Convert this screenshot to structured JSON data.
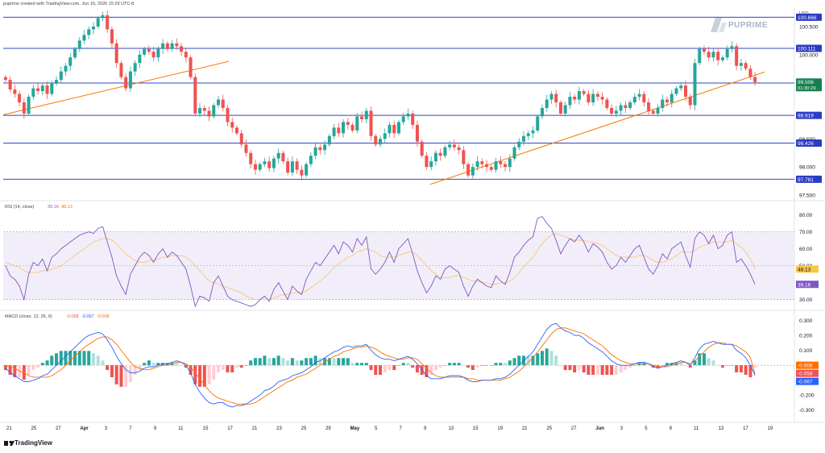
{
  "header": {
    "caption": "puprime created with TradingView.com, Jun 15, 2026 15:29 UTC-8"
  },
  "brand": {
    "logo_text": "PUPRIME",
    "footer": "TradingView"
  },
  "colors": {
    "up": "#26a69a",
    "down": "#ef5350",
    "level_line": "#2f45c9",
    "trend": "#f57c00",
    "rsi": "#7e57c2",
    "rsi_ma": "#f6c67a",
    "macd": "#2962ff",
    "signal": "#ff6d00",
    "price_tag": "#1a7f4f",
    "level_tag": "#2a3cc2"
  },
  "chart_data": [
    {
      "type": "candlestick",
      "title": "",
      "currency_label": "USD",
      "y_ticks": [
        "100.500",
        "100.000",
        "99.500",
        "98.500",
        "98.000",
        "97.500"
      ],
      "ylim": [
        97.5,
        100.8
      ],
      "levels": [
        {
          "value": 100.666,
          "label": "100.666"
        },
        {
          "value": 100.111,
          "label": "100.111"
        },
        {
          "value": 99.495,
          "label": "99.495"
        },
        {
          "value": 98.919,
          "label": "98.919"
        },
        {
          "value": 98.426,
          "label": "98.426"
        },
        {
          "value": 97.781,
          "label": "97.781"
        }
      ],
      "current_price": {
        "value": 99.506,
        "label": "99.506",
        "countdown": "01:30:29"
      },
      "trendlines": [
        {
          "x0": 0.0,
          "y0": 98.93,
          "x1": 0.28,
          "y1": 99.88
        },
        {
          "x0": 0.53,
          "y0": 97.69,
          "x1": 0.945,
          "y1": 99.69
        }
      ],
      "x_ticks": [
        "21",
        "25",
        "27",
        "Apr",
        "3",
        "7",
        "9",
        "11",
        "15",
        "17",
        "21",
        "23",
        "25",
        "29",
        "May",
        "5",
        "7",
        "9",
        "13",
        "15",
        "19",
        "21",
        "25",
        "27",
        "Jun",
        "3",
        "5",
        "9",
        "11",
        "13",
        "17",
        "19"
      ],
      "closes": [
        99.55,
        99.38,
        99.3,
        99.15,
        98.95,
        99.25,
        99.4,
        99.35,
        99.45,
        99.3,
        99.5,
        99.55,
        99.7,
        99.8,
        99.95,
        100.1,
        100.25,
        100.35,
        100.45,
        100.5,
        100.65,
        100.7,
        100.45,
        100.2,
        99.85,
        99.6,
        99.4,
        99.7,
        99.85,
        100.0,
        100.1,
        100.05,
        99.95,
        100.1,
        100.2,
        100.1,
        100.2,
        100.15,
        100.05,
        99.95,
        99.6,
        98.95,
        99.05,
        99.0,
        98.9,
        99.1,
        99.2,
        99.05,
        98.8,
        98.7,
        98.6,
        98.4,
        98.25,
        98.05,
        97.95,
        98.05,
        98.1,
        97.98,
        98.15,
        98.25,
        98.1,
        97.9,
        98.1,
        97.95,
        97.85,
        98.05,
        98.2,
        98.35,
        98.3,
        98.4,
        98.55,
        98.7,
        98.6,
        98.8,
        98.75,
        98.65,
        98.9,
        98.85,
        99.0,
        98.55,
        98.4,
        98.5,
        98.6,
        98.75,
        98.6,
        98.8,
        98.9,
        98.95,
        98.75,
        98.45,
        98.2,
        98.0,
        98.1,
        98.25,
        98.2,
        98.35,
        98.4,
        98.35,
        98.3,
        98.05,
        97.85,
        98.0,
        98.1,
        98.05,
        98.0,
        97.95,
        98.1,
        98.05,
        98.0,
        98.15,
        98.35,
        98.45,
        98.55,
        98.6,
        98.65,
        98.9,
        99.05,
        99.2,
        99.3,
        99.15,
        98.95,
        99.1,
        99.25,
        99.2,
        99.35,
        99.3,
        99.15,
        99.3,
        99.25,
        99.2,
        99.05,
        98.95,
        99.0,
        99.1,
        99.05,
        99.15,
        99.25,
        99.3,
        99.15,
        99.0,
        98.95,
        99.05,
        99.2,
        99.15,
        99.3,
        99.4,
        99.45,
        99.25,
        99.1,
        99.85,
        100.1,
        100.05,
        99.95,
        100.05,
        99.9,
        99.95,
        100.1,
        100.15,
        99.8,
        99.85,
        99.75,
        99.6,
        99.51
      ]
    },
    {
      "type": "line",
      "title": "RSI (14, close)",
      "legend_values": [
        "39.16",
        "48.13"
      ],
      "y_ticks": [
        "80.00",
        "70.00",
        "60.00",
        "50.00",
        "40.00",
        "30.00"
      ],
      "ylim": [
        27,
        85
      ],
      "band": [
        30,
        70
      ],
      "series": [
        {
          "name": "RSI",
          "label": "39.16",
          "values": [
            50,
            44,
            42,
            38,
            30,
            45,
            52,
            50,
            54,
            47,
            55,
            57,
            60,
            62,
            64,
            66,
            68,
            69,
            70,
            69,
            72,
            73,
            64,
            55,
            44,
            38,
            33,
            45,
            50,
            55,
            58,
            56,
            52,
            57,
            60,
            55,
            58,
            56,
            52,
            48,
            38,
            26,
            32,
            31,
            29,
            40,
            44,
            38,
            32,
            30,
            29,
            28,
            27,
            26,
            27,
            30,
            32,
            29,
            36,
            40,
            35,
            30,
            38,
            35,
            33,
            42,
            47,
            52,
            50,
            54,
            58,
            62,
            57,
            64,
            62,
            58,
            66,
            62,
            67,
            48,
            45,
            48,
            52,
            58,
            52,
            60,
            63,
            66,
            57,
            47,
            40,
            34,
            38,
            44,
            42,
            48,
            50,
            48,
            46,
            38,
            32,
            38,
            42,
            40,
            38,
            37,
            44,
            41,
            39,
            46,
            55,
            58,
            62,
            65,
            67,
            78,
            79,
            75,
            72,
            65,
            57,
            62,
            66,
            64,
            68,
            64,
            58,
            63,
            61,
            58,
            52,
            48,
            50,
            55,
            52,
            56,
            60,
            62,
            55,
            48,
            45,
            50,
            57,
            54,
            60,
            62,
            64,
            56,
            49,
            66,
            70,
            68,
            63,
            68,
            60,
            62,
            68,
            70,
            52,
            54,
            50,
            45,
            39
          ]
        },
        {
          "name": "RSI MA",
          "label": "48.13",
          "values": [
            52,
            51,
            50,
            49,
            47,
            46,
            46,
            46,
            47,
            47,
            48,
            49,
            50,
            52,
            54,
            56,
            58,
            60,
            62,
            64,
            65,
            66,
            66,
            65,
            63,
            60,
            57,
            55,
            53,
            52,
            52,
            53,
            53,
            54,
            55,
            55,
            56,
            56,
            56,
            55,
            53,
            50,
            47,
            44,
            41,
            40,
            39,
            38,
            37,
            36,
            35,
            34,
            32,
            31,
            30,
            30,
            30,
            30,
            31,
            32,
            33,
            33,
            34,
            34,
            34,
            35,
            37,
            39,
            41,
            43,
            46,
            49,
            51,
            53,
            55,
            56,
            58,
            59,
            60,
            59,
            58,
            56,
            55,
            55,
            55,
            56,
            57,
            58,
            58,
            56,
            53,
            50,
            47,
            45,
            43,
            43,
            43,
            44,
            44,
            43,
            42,
            41,
            41,
            40,
            40,
            39,
            39,
            40,
            40,
            41,
            43,
            46,
            49,
            52,
            55,
            59,
            63,
            66,
            68,
            69,
            68,
            67,
            66,
            65,
            65,
            65,
            64,
            64,
            63,
            62,
            60,
            58,
            56,
            55,
            55,
            55,
            55,
            56,
            56,
            55,
            53,
            52,
            52,
            53,
            54,
            56,
            58,
            58,
            58,
            59,
            61,
            62,
            63,
            64,
            64,
            64,
            64,
            65,
            63,
            61,
            58,
            54,
            48
          ]
        }
      ]
    },
    {
      "type": "bar+line",
      "title": "MACD (close, 12, 26, 9)",
      "legend_values": [
        "-0.058",
        "-0.067",
        "-0.008"
      ],
      "y_ticks": [
        "0.300",
        "0.200",
        "0.100",
        "0.000",
        "-0.100",
        "-0.200",
        "-0.300"
      ],
      "ylim": [
        -0.35,
        0.33
      ],
      "series": [
        {
          "name": "MACD",
          "label": "-0.067",
          "values": [
            -0.02,
            -0.05,
            -0.07,
            -0.09,
            -0.11,
            -0.11,
            -0.1,
            -0.09,
            -0.07,
            -0.06,
            -0.03,
            0.0,
            0.03,
            0.06,
            0.09,
            0.12,
            0.15,
            0.18,
            0.2,
            0.21,
            0.22,
            0.21,
            0.17,
            0.12,
            0.06,
            0.01,
            -0.03,
            -0.05,
            -0.05,
            -0.04,
            -0.02,
            -0.01,
            -0.01,
            0.0,
            0.01,
            0.01,
            0.02,
            0.03,
            0.02,
            0.0,
            -0.05,
            -0.13,
            -0.18,
            -0.22,
            -0.25,
            -0.26,
            -0.25,
            -0.25,
            -0.27,
            -0.28,
            -0.27,
            -0.27,
            -0.26,
            -0.24,
            -0.22,
            -0.2,
            -0.17,
            -0.16,
            -0.14,
            -0.11,
            -0.1,
            -0.09,
            -0.07,
            -0.06,
            -0.05,
            -0.03,
            -0.01,
            0.02,
            0.03,
            0.05,
            0.07,
            0.09,
            0.1,
            0.12,
            0.13,
            0.12,
            0.13,
            0.13,
            0.14,
            0.1,
            0.07,
            0.05,
            0.04,
            0.04,
            0.03,
            0.04,
            0.05,
            0.06,
            0.04,
            0.01,
            -0.03,
            -0.07,
            -0.09,
            -0.09,
            -0.09,
            -0.08,
            -0.07,
            -0.07,
            -0.07,
            -0.08,
            -0.1,
            -0.11,
            -0.11,
            -0.1,
            -0.1,
            -0.1,
            -0.09,
            -0.09,
            -0.08,
            -0.06,
            -0.03,
            0.0,
            0.03,
            0.06,
            0.09,
            0.14,
            0.19,
            0.24,
            0.27,
            0.28,
            0.25,
            0.23,
            0.22,
            0.2,
            0.2,
            0.18,
            0.15,
            0.13,
            0.11,
            0.09,
            0.06,
            0.03,
            0.01,
            0.0,
            0.0,
            0.0,
            0.01,
            0.02,
            0.02,
            0.01,
            -0.01,
            -0.02,
            -0.01,
            0.0,
            0.01,
            0.02,
            0.03,
            0.02,
            0.0,
            0.05,
            0.11,
            0.14,
            0.15,
            0.16,
            0.15,
            0.14,
            0.14,
            0.14,
            0.1,
            0.08,
            0.05,
            0.0,
            -0.067
          ]
        },
        {
          "name": "Signal",
          "label": "-0.058",
          "values": [
            0.0,
            -0.01,
            -0.02,
            -0.04,
            -0.05,
            -0.07,
            -0.08,
            -0.08,
            -0.08,
            -0.08,
            -0.07,
            -0.05,
            -0.03,
            0.0,
            0.03,
            0.06,
            0.09,
            0.12,
            0.14,
            0.16,
            0.18,
            0.19,
            0.19,
            0.17,
            0.14,
            0.1,
            0.06,
            0.02,
            -0.01,
            -0.02,
            -0.03,
            -0.03,
            -0.02,
            -0.01,
            0.0,
            0.0,
            0.01,
            0.02,
            0.02,
            0.01,
            -0.01,
            -0.05,
            -0.09,
            -0.13,
            -0.17,
            -0.2,
            -0.22,
            -0.23,
            -0.24,
            -0.25,
            -0.26,
            -0.26,
            -0.26,
            -0.26,
            -0.25,
            -0.23,
            -0.21,
            -0.19,
            -0.17,
            -0.15,
            -0.13,
            -0.11,
            -0.1,
            -0.08,
            -0.07,
            -0.06,
            -0.04,
            -0.02,
            0.0,
            0.02,
            0.04,
            0.06,
            0.07,
            0.09,
            0.1,
            0.11,
            0.12,
            0.12,
            0.13,
            0.12,
            0.11,
            0.09,
            0.07,
            0.06,
            0.05,
            0.04,
            0.04,
            0.05,
            0.05,
            0.04,
            0.01,
            -0.02,
            -0.05,
            -0.07,
            -0.08,
            -0.08,
            -0.08,
            -0.08,
            -0.08,
            -0.08,
            -0.09,
            -0.09,
            -0.1,
            -0.1,
            -0.1,
            -0.1,
            -0.1,
            -0.1,
            -0.09,
            -0.08,
            -0.06,
            -0.04,
            -0.01,
            0.02,
            0.05,
            0.09,
            0.13,
            0.17,
            0.21,
            0.24,
            0.25,
            0.25,
            0.24,
            0.23,
            0.22,
            0.21,
            0.19,
            0.17,
            0.15,
            0.13,
            0.1,
            0.07,
            0.05,
            0.03,
            0.02,
            0.01,
            0.01,
            0.01,
            0.01,
            0.01,
            0.0,
            -0.01,
            -0.01,
            -0.01,
            0.0,
            0.01,
            0.02,
            0.02,
            0.01,
            0.03,
            0.06,
            0.09,
            0.12,
            0.14,
            0.15,
            0.15,
            0.14,
            0.14,
            0.13,
            0.11,
            0.09,
            0.05,
            -0.058
          ]
        },
        {
          "name": "Histogram",
          "label": "-0.008",
          "values": []
        }
      ]
    }
  ]
}
